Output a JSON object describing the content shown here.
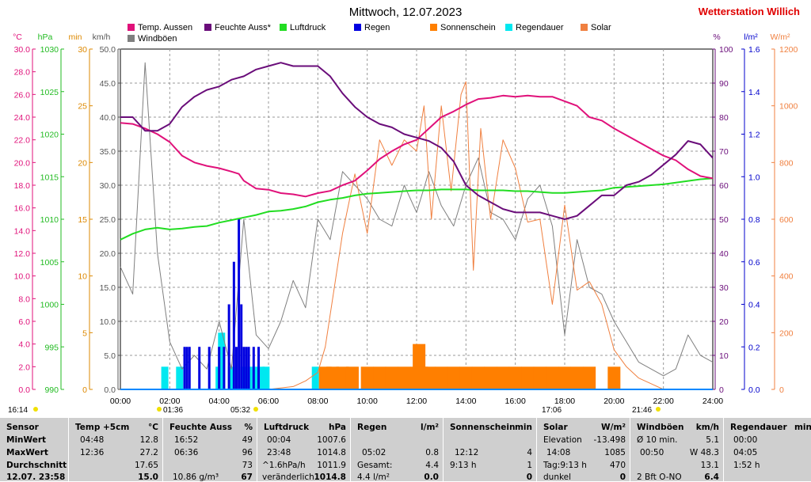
{
  "window": {
    "title": "Mittwoch, 12.07.2023",
    "station": "Wetterstation Willich"
  },
  "colors": {
    "temp": "#e0117a",
    "feuchte": "#6a0d7a",
    "luftdruck": "#22dd22",
    "regen": "#0000e0",
    "sonnenschein": "#ff7f00",
    "regendauer": "#00e8f0",
    "solar": "#f08040",
    "windboeen": "#7f7f7f",
    "hpa": "#22bb22",
    "min": "#dd8800",
    "lm2": "#0000cc",
    "wm2": "#f08040"
  },
  "chart_data": {
    "type": "line",
    "title": "Mittwoch, 12.07.2023",
    "legend": [
      "Temp. Aussen",
      "Feuchte Auss*",
      "Luftdruck",
      "Regen",
      "Sonnenschein",
      "Regendauer",
      "Solar",
      "Windböen"
    ],
    "axes": {
      "x": {
        "ticks": [
          "00:00",
          "02:00",
          "04:00",
          "06:00",
          "08:00",
          "10:00",
          "12:00",
          "14:00",
          "16:00",
          "18:00",
          "20:00",
          "22:00",
          "24:00"
        ],
        "range": [
          0,
          24
        ]
      },
      "temp": {
        "label": "°C",
        "range": [
          0,
          30
        ],
        "ticks": [
          "0.0",
          "2.0",
          "4.0",
          "6.0",
          "8.0",
          "10.0",
          "12.0",
          "14.0",
          "16.0",
          "18.0",
          "20.0",
          "22.0",
          "24.0",
          "26.0",
          "28.0",
          "30.0"
        ]
      },
      "hpa": {
        "label": "hPa",
        "range": [
          990,
          1030
        ],
        "ticks": [
          "990",
          "995",
          "1000",
          "1005",
          "1010",
          "1015",
          "1020",
          "1025",
          "1030"
        ]
      },
      "min": {
        "label": "min",
        "range": [
          0,
          30
        ],
        "ticks": [
          "0",
          "5",
          "10",
          "15",
          "20",
          "25",
          "30"
        ]
      },
      "kmh": {
        "label": "km/h",
        "range": [
          0,
          50
        ],
        "ticks": [
          "0.0",
          "5.0",
          "10.0",
          "15.0",
          "20.0",
          "25.0",
          "30.0",
          "35.0",
          "40.0",
          "45.0",
          "50.0"
        ]
      },
      "pct": {
        "label": "%",
        "range": [
          0,
          100
        ],
        "ticks": [
          "0",
          "10",
          "20",
          "30",
          "40",
          "50",
          "60",
          "70",
          "80",
          "90",
          "100"
        ]
      },
      "lm2": {
        "label": "l/m²",
        "range": [
          0,
          1.6
        ],
        "ticks": [
          "0.0",
          "0.2",
          "0.4",
          "0.6",
          "0.8",
          "1.0",
          "1.2",
          "1.4",
          "1.6"
        ]
      },
      "wm2": {
        "label": "W/m²",
        "range": [
          0,
          1200
        ],
        "ticks": [
          "0",
          "200",
          "400",
          "600",
          "800",
          "1000",
          "1200"
        ]
      }
    },
    "series": [
      {
        "name": "Temp. Aussen",
        "axis": "temp",
        "x": [
          0,
          0.5,
          1,
          1.5,
          2,
          2.5,
          3,
          3.5,
          4,
          4.5,
          4.8,
          5,
          5.5,
          6,
          6.5,
          7,
          7.5,
          8,
          8.5,
          9,
          9.5,
          10,
          10.5,
          11,
          11.5,
          12,
          12.6,
          13,
          13.5,
          14,
          14.5,
          15,
          15.5,
          16,
          16.5,
          17,
          17.5,
          18,
          18.5,
          19,
          19.5,
          20,
          20.5,
          21,
          21.5,
          22,
          22.5,
          23,
          23.5,
          24
        ],
        "y": [
          23.5,
          23.4,
          23.0,
          22.5,
          21.8,
          20.6,
          20.0,
          19.7,
          19.5,
          19.2,
          19.0,
          18.4,
          17.7,
          17.6,
          17.3,
          17.2,
          17.0,
          17.3,
          17.5,
          18.0,
          18.4,
          19.3,
          20.3,
          21.0,
          21.6,
          22.0,
          23.2,
          24.0,
          24.5,
          25.1,
          25.6,
          25.7,
          25.9,
          25.8,
          25.9,
          25.8,
          25.8,
          25.4,
          25.0,
          24.0,
          23.7,
          23.0,
          22.4,
          21.8,
          21.2,
          20.6,
          20.2,
          19.4,
          18.8,
          18.6
        ]
      },
      {
        "name": "Feuchte Auss*",
        "axis": "pct",
        "x": [
          0,
          0.5,
          1,
          1.5,
          2,
          2.5,
          3,
          3.5,
          4,
          4.5,
          5,
          5.5,
          6,
          6.5,
          7,
          7.5,
          8,
          8.5,
          9,
          9.5,
          10,
          10.5,
          11,
          11.5,
          12,
          12.5,
          13,
          13.5,
          14,
          14.5,
          15,
          15.5,
          16,
          16.5,
          17,
          17.5,
          18,
          18.5,
          19,
          19.5,
          20,
          20.5,
          21,
          21.5,
          22,
          22.5,
          23,
          23.5,
          24
        ],
        "y": [
          80,
          80,
          76,
          76,
          78,
          83,
          86,
          88,
          89,
          91,
          92,
          94,
          95,
          96,
          95,
          95,
          95,
          92,
          87,
          83,
          80,
          78,
          77,
          75,
          74,
          73,
          71,
          67,
          60,
          57,
          55,
          53,
          52,
          52,
          52,
          51,
          50,
          51,
          54,
          57,
          57,
          60,
          61,
          63,
          66,
          69,
          73,
          72,
          68
        ]
      },
      {
        "name": "Luftdruck",
        "axis": "hpa",
        "x": [
          0,
          0.5,
          1,
          1.5,
          2,
          2.5,
          3,
          3.5,
          4,
          4.5,
          5,
          5.5,
          6,
          6.5,
          7,
          7.5,
          8,
          8.5,
          9,
          9.5,
          10,
          10.5,
          11,
          11.5,
          12,
          12.5,
          13,
          13.5,
          14,
          14.5,
          15,
          15.5,
          16,
          16.5,
          17,
          17.5,
          18,
          18.5,
          19,
          19.5,
          20,
          20.5,
          21,
          21.5,
          22,
          22.5,
          23,
          23.5,
          24
        ],
        "y": [
          1007.6,
          1008.3,
          1008.8,
          1009.0,
          1008.8,
          1008.9,
          1009.1,
          1009.2,
          1009.6,
          1009.9,
          1010.2,
          1010.5,
          1010.9,
          1011.0,
          1011.2,
          1011.5,
          1012.0,
          1012.3,
          1012.5,
          1012.8,
          1013.0,
          1013.1,
          1013.2,
          1013.3,
          1013.4,
          1013.4,
          1013.5,
          1013.5,
          1013.5,
          1013.4,
          1013.4,
          1013.4,
          1013.3,
          1013.3,
          1013.2,
          1013.1,
          1013.1,
          1013.2,
          1013.3,
          1013.4,
          1013.7,
          1013.8,
          1013.9,
          1014.0,
          1014.1,
          1014.3,
          1014.5,
          1014.7,
          1014.8
        ]
      },
      {
        "name": "Regen",
        "axis": "lm2",
        "x": [
          2.6,
          2.7,
          2.8,
          3.2,
          3.6,
          4.0,
          4.2,
          4.4,
          4.6,
          4.7,
          4.8,
          4.9,
          5.0,
          5.1,
          5.2,
          5.4,
          5.6
        ],
        "y": [
          0.2,
          0.2,
          0.2,
          0.2,
          0.2,
          0.2,
          0.2,
          0.4,
          0.6,
          0.2,
          0.8,
          0.4,
          0.2,
          0.2,
          0.2,
          0.2,
          0.2
        ]
      },
      {
        "name": "Sonnenschein",
        "axis": "min",
        "x": [
          8.3,
          8.6,
          9.0,
          9.4,
          10.0,
          10.5,
          11.0,
          11.5,
          12.0,
          12.1,
          12.2,
          12.5,
          13.0,
          13.5,
          14.0,
          14.5,
          15.0,
          15.5,
          16.0,
          16.5,
          17.0,
          17.5,
          18.0,
          18.5,
          19.0,
          19.5,
          20.0,
          20.5
        ],
        "y": [
          2,
          2,
          2,
          2,
          2,
          2,
          2,
          2,
          2,
          4,
          2,
          2,
          2,
          2,
          2,
          2,
          2,
          2,
          2,
          2,
          2,
          2,
          2,
          2,
          2,
          0,
          2,
          0
        ]
      },
      {
        "name": "Regendauer",
        "axis": "min",
        "x": [
          1.8,
          2.4,
          4.0,
          4.1,
          4.5,
          5.0,
          5.3,
          5.5,
          5.7,
          5.9,
          7.9
        ],
        "y": [
          2,
          2,
          2,
          5,
          2,
          2,
          2,
          2,
          2,
          2,
          2
        ]
      },
      {
        "name": "Solar",
        "axis": "wm2",
        "x": [
          0,
          6,
          7,
          7.5,
          8,
          8.3,
          8.6,
          9,
          9.5,
          10,
          10.5,
          11,
          11.5,
          12,
          12.3,
          12.6,
          13,
          13.4,
          13.8,
          14,
          14.3,
          14.6,
          15,
          15.5,
          16,
          16.5,
          17,
          17.5,
          18,
          18.5,
          19,
          19.5,
          20,
          20.5,
          21,
          21.5,
          22,
          24
        ],
        "y": [
          0,
          0,
          10,
          30,
          60,
          150,
          320,
          550,
          760,
          550,
          880,
          790,
          880,
          840,
          1000,
          600,
          1000,
          700,
          1040,
          1085,
          420,
          920,
          600,
          880,
          780,
          590,
          600,
          300,
          650,
          350,
          380,
          300,
          140,
          80,
          40,
          20,
          0,
          0
        ]
      },
      {
        "name": "Windböen",
        "axis": "kmh",
        "x": [
          0,
          0.5,
          1,
          1.5,
          2,
          2.5,
          3,
          3.5,
          4,
          4.5,
          5,
          5.5,
          6,
          6.5,
          7,
          7.5,
          8,
          8.5,
          9,
          9.5,
          10,
          10.5,
          11,
          11.5,
          12,
          12.5,
          13,
          13.5,
          14,
          14.5,
          15,
          15.5,
          16,
          16.5,
          17,
          17.5,
          18,
          18.5,
          19,
          19.5,
          20,
          20.5,
          21,
          21.5,
          22,
          22.5,
          23,
          23.5,
          24
        ],
        "y": [
          18,
          14,
          48,
          20,
          7,
          3,
          5,
          3,
          10,
          3,
          25,
          8,
          6,
          10,
          16,
          12,
          25,
          22,
          32,
          30,
          28,
          25,
          24,
          30,
          26,
          32,
          27,
          24,
          30,
          34,
          26,
          25,
          22,
          28,
          30,
          24,
          8,
          22,
          15,
          14,
          10,
          7,
          4,
          3,
          2,
          3,
          8,
          5,
          4
        ]
      }
    ]
  },
  "bottom_markers": {
    "left_time": "16:14",
    "sunrise": "01:36",
    "sunrise2": "05:32",
    "sunset": "17:06",
    "right_time": "21:46"
  },
  "table": {
    "rowlabels": {
      "header": "Sensor",
      "min": "MinWert",
      "max": "MaxWert",
      "avg": "Durchschnitt",
      "last": "12.07. 23:58"
    },
    "temp": {
      "header": "Temp +5cm",
      "unit": "°C",
      "min_time": "04:48",
      "min_val": "12.8",
      "max_time": "12:36",
      "max_val": "27.2",
      "avg": "17.65",
      "last": "15.0"
    },
    "feuchte": {
      "header": "Feuchte Auss",
      "unit": "%",
      "min_time": "16:52",
      "min_val": "49",
      "max_time": "06:36",
      "max_val": "96",
      "avg": "73",
      "last_label": "10.86 g/m³",
      "last": "67"
    },
    "luftdruck": {
      "header": "Luftdruck",
      "unit": "hPa",
      "min_time": "00:04",
      "min_val": "1007.6",
      "max_time": "23:48",
      "max_val": "1014.8",
      "avg_label": "^1.6hPa/h",
      "avg": "1011.9",
      "last_label": "veränderlich",
      "last": "1014.8"
    },
    "regen": {
      "header": "Regen",
      "unit": "l/m²",
      "max_time": "05:02",
      "max_val": "0.8",
      "avg_label": "Gesamt:",
      "avg": "4.4",
      "last_label": "4.4 l/m²",
      "last": "0.0"
    },
    "sonne": {
      "header": "Sonnenschein",
      "unit": "min",
      "max_time": "12:12",
      "max_val": "4",
      "avg_label": "9:13 h",
      "avg": "1",
      "last": "0"
    },
    "solar": {
      "header": "Solar",
      "unit": "W/m²",
      "min_label": "Elevation",
      "min_val": "-13.498",
      "max_time": "14:08",
      "max_val": "1085",
      "avg_label": "Tag:9:13 h",
      "avg": "470",
      "last_label": "dunkel",
      "last": "0"
    },
    "wind": {
      "header": "Windböen",
      "unit": "km/h",
      "min_label": "Ø 10 min.",
      "min_val": "5.1",
      "max_time": "00:50",
      "max_val": "W 48.3",
      "avg": "13.1",
      "last_label": "2 Bft O-NO",
      "last": "6.4"
    },
    "regendauer": {
      "header": "Regendauer",
      "unit": "min",
      "min_time": "00:00",
      "max_time": "04:05",
      "avg": "1:52 h"
    }
  }
}
